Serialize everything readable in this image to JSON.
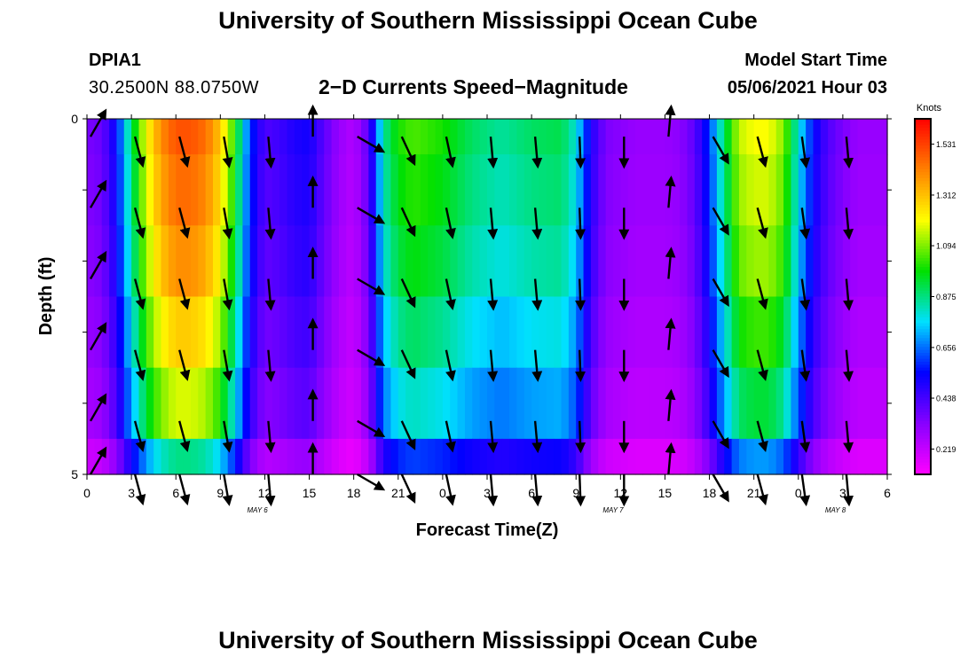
{
  "header": {
    "title": "University of Southern Mississippi Ocean Cube",
    "footer_title": "University of Southern Mississippi Ocean Cube",
    "station": "DPIA1",
    "coords": "30.2500N  88.0750W",
    "subtitle": "2−D Currents Speed−Magnitude",
    "model_label": "Model Start Time",
    "model_time": "05/06/2021 Hour 03"
  },
  "colors": {
    "bands": [
      "#ff00ff",
      "#8800ff",
      "#0000ff",
      "#00e0ff",
      "#00e000",
      "#ffff00",
      "#ff8000",
      "#ff0000"
    ]
  },
  "chart_data": {
    "type": "heatmap",
    "xlabel": "Forecast Time(Z)",
    "ylabel": "Depth (ft)",
    "x_ticks": [
      "0",
      "3",
      "6",
      "9",
      "12",
      "15",
      "18",
      "21",
      "0",
      "3",
      "6",
      "9",
      "12",
      "15",
      "18",
      "21",
      "0",
      "3",
      "6"
    ],
    "day_labels": [
      {
        "text": "MAY 6",
        "hour": 11.5
      },
      {
        "text": "MAY 7",
        "hour": 35.5
      },
      {
        "text": "MAY 8",
        "hour": 50.5
      }
    ],
    "x_range_hours": [
      0,
      54
    ],
    "y_ticks": [
      "0",
      "5"
    ],
    "ylim": [
      0,
      5
    ],
    "colorbar": {
      "unit": "Knots",
      "min": 0.11,
      "max": 1.64,
      "ticks": [
        "1.531",
        "1.312",
        "1.094",
        "0.875",
        "0.656",
        "0.438",
        "0.219"
      ],
      "tick_values": [
        1.531,
        1.312,
        1.094,
        0.875,
        0.656,
        0.438,
        0.219
      ]
    },
    "depth_layers": [
      "0.0-0.5",
      "0.5-1.5",
      "1.5-2.5",
      "2.5-3.5",
      "3.5-4.5",
      "4.5-5.0"
    ],
    "speed_profile_knots": [
      [
        0,
        0.35
      ],
      [
        1,
        0.38
      ],
      [
        2,
        0.55
      ],
      [
        3,
        0.9
      ],
      [
        4,
        1.2
      ],
      [
        5,
        1.4
      ],
      [
        6,
        1.5
      ],
      [
        7,
        1.5
      ],
      [
        8,
        1.45
      ],
      [
        9,
        1.3
      ],
      [
        10,
        1.0
      ],
      [
        11,
        0.6
      ],
      [
        12,
        0.42
      ],
      [
        13,
        0.45
      ],
      [
        14,
        0.5
      ],
      [
        15,
        0.52
      ],
      [
        16,
        0.4
      ],
      [
        17,
        0.3
      ],
      [
        18,
        0.25
      ],
      [
        19,
        0.4
      ],
      [
        20,
        0.85
      ],
      [
        21,
        1.0
      ],
      [
        22,
        1.05
      ],
      [
        24,
        1.0
      ],
      [
        26,
        0.9
      ],
      [
        28,
        0.85
      ],
      [
        30,
        0.9
      ],
      [
        32,
        0.92
      ],
      [
        33,
        0.8
      ],
      [
        34,
        0.5
      ],
      [
        35,
        0.35
      ],
      [
        37,
        0.3
      ],
      [
        39,
        0.3
      ],
      [
        40,
        0.32
      ],
      [
        41,
        0.4
      ],
      [
        42,
        0.6
      ],
      [
        43,
        0.9
      ],
      [
        44,
        1.15
      ],
      [
        45,
        1.2
      ],
      [
        46,
        1.2
      ],
      [
        47,
        1.1
      ],
      [
        48,
        0.8
      ],
      [
        49,
        0.55
      ],
      [
        50,
        0.42
      ],
      [
        51,
        0.35
      ],
      [
        52,
        0.3
      ],
      [
        54,
        0.3
      ]
    ],
    "layer_factor": [
      1.0,
      0.97,
      0.93,
      0.86,
      0.78,
      0.58
    ],
    "vectors": {
      "hours": [
        0,
        3,
        6,
        9,
        12,
        15,
        18,
        21,
        24,
        27,
        30,
        33,
        36,
        39,
        42,
        45,
        48,
        51
      ],
      "depths_ft": [
        0.25,
        1.25,
        2.25,
        3.25,
        4.25,
        5.0
      ],
      "dir_deg": [
        30,
        165,
        165,
        170,
        175,
        0,
        120,
        155,
        168,
        175,
        175,
        178,
        180,
        5,
        150,
        165,
        172,
        175
      ]
    }
  }
}
